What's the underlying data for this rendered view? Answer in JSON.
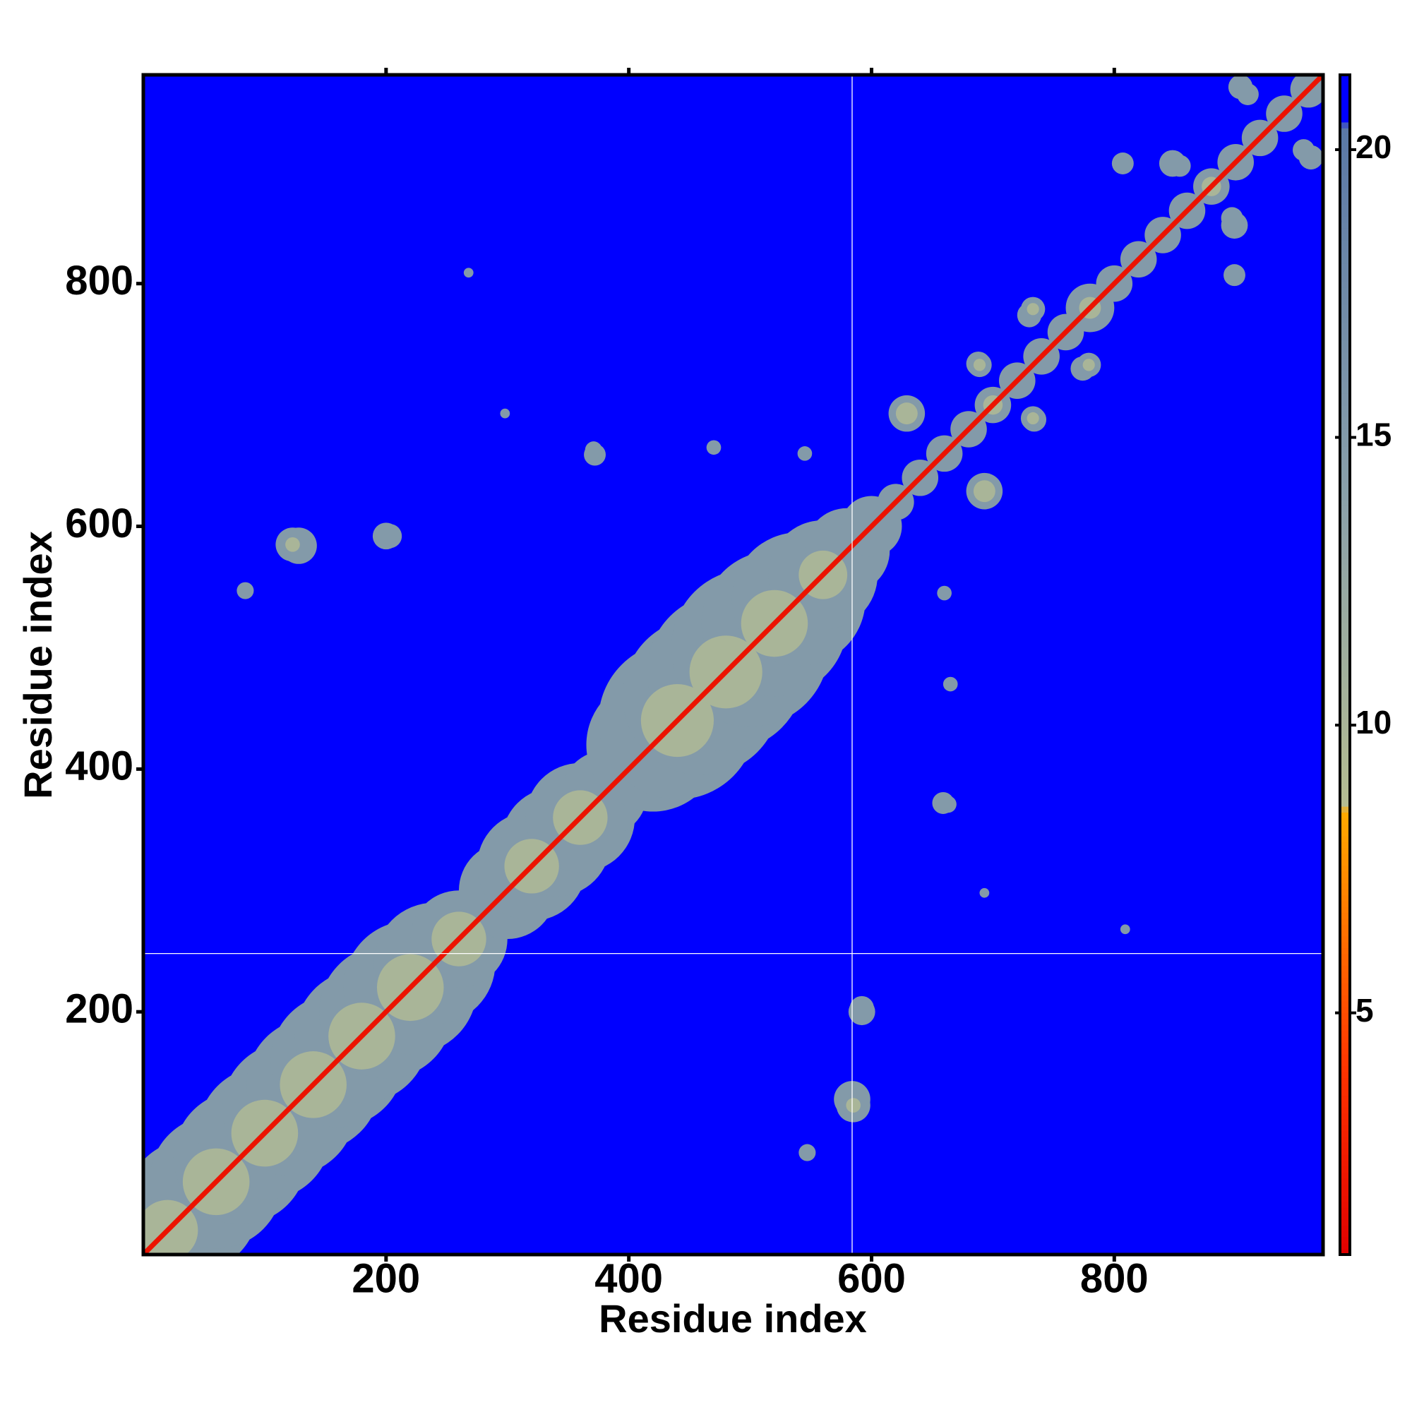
{
  "chart_data": {
    "type": "heatmap",
    "xlabel": "Residue index",
    "ylabel": "Residue index",
    "xlim": [
      0,
      972
    ],
    "ylim": [
      0,
      972
    ],
    "xticks": [
      200,
      400,
      600,
      800
    ],
    "yticks": [
      200,
      400,
      600,
      800
    ],
    "zlim": [
      0.8,
      21.3
    ],
    "zticks": [
      5,
      10,
      15,
      20
    ],
    "colorscale": [
      [
        0.8,
        "#e00000"
      ],
      [
        4,
        "#ff3300"
      ],
      [
        6,
        "#ff6600"
      ],
      [
        8.5,
        "#ffaa00"
      ],
      [
        8.6,
        "#b4bc92"
      ],
      [
        14,
        "#8aa0aa"
      ],
      [
        20.4,
        "#5a78a6"
      ],
      [
        20.5,
        "#0000ff"
      ],
      [
        21.3,
        "#0000ff"
      ]
    ],
    "background_value": 21,
    "diagonal_value": 2,
    "vlines": [
      584
    ],
    "hlines": [
      248
    ],
    "band": [
      {
        "x": 20,
        "span": 110,
        "value": 15
      },
      {
        "x": 40,
        "span": 110,
        "value": 15
      },
      {
        "x": 60,
        "span": 110,
        "value": 15
      },
      {
        "x": 80,
        "span": 110,
        "value": 15
      },
      {
        "x": 100,
        "span": 110,
        "value": 15
      },
      {
        "x": 120,
        "span": 110,
        "value": 15
      },
      {
        "x": 140,
        "span": 110,
        "value": 15
      },
      {
        "x": 160,
        "span": 110,
        "value": 15
      },
      {
        "x": 180,
        "span": 110,
        "value": 15
      },
      {
        "x": 200,
        "span": 110,
        "value": 15
      },
      {
        "x": 220,
        "span": 110,
        "value": 15
      },
      {
        "x": 240,
        "span": 100,
        "value": 15
      },
      {
        "x": 260,
        "span": 80,
        "value": 15
      },
      {
        "x": 280,
        "span": 40,
        "value": 15
      },
      {
        "x": 300,
        "span": 80,
        "value": 15
      },
      {
        "x": 320,
        "span": 90,
        "value": 15
      },
      {
        "x": 340,
        "span": 90,
        "value": 15
      },
      {
        "x": 360,
        "span": 90,
        "value": 15
      },
      {
        "x": 380,
        "span": 70,
        "value": 15
      },
      {
        "x": 400,
        "span": 40,
        "value": 15
      },
      {
        "x": 420,
        "span": 110,
        "value": 15
      },
      {
        "x": 440,
        "span": 130,
        "value": 15
      },
      {
        "x": 460,
        "span": 130,
        "value": 15
      },
      {
        "x": 480,
        "span": 130,
        "value": 15
      },
      {
        "x": 500,
        "span": 130,
        "value": 15
      },
      {
        "x": 520,
        "span": 120,
        "value": 15
      },
      {
        "x": 540,
        "span": 110,
        "value": 15
      },
      {
        "x": 560,
        "span": 90,
        "value": 15
      },
      {
        "x": 580,
        "span": 70,
        "value": 15
      },
      {
        "x": 600,
        "span": 50,
        "value": 15
      },
      {
        "x": 620,
        "span": 30,
        "value": 15
      },
      {
        "x": 640,
        "span": 30,
        "value": 15
      },
      {
        "x": 660,
        "span": 30,
        "value": 15
      },
      {
        "x": 680,
        "span": 30,
        "value": 15
      },
      {
        "x": 700,
        "span": 30,
        "value": 15
      },
      {
        "x": 720,
        "span": 30,
        "value": 15
      },
      {
        "x": 740,
        "span": 30,
        "value": 15
      },
      {
        "x": 760,
        "span": 30,
        "value": 15
      },
      {
        "x": 780,
        "span": 40,
        "value": 15
      },
      {
        "x": 800,
        "span": 30,
        "value": 15
      },
      {
        "x": 820,
        "span": 30,
        "value": 15
      },
      {
        "x": 840,
        "span": 30,
        "value": 15
      },
      {
        "x": 860,
        "span": 30,
        "value": 15
      },
      {
        "x": 880,
        "span": 30,
        "value": 15
      },
      {
        "x": 900,
        "span": 30,
        "value": 15
      },
      {
        "x": 920,
        "span": 30,
        "value": 15
      },
      {
        "x": 940,
        "span": 30,
        "value": 15
      },
      {
        "x": 960,
        "span": 30,
        "value": 15
      },
      {
        "x": 20,
        "span": 50,
        "value": 10
      },
      {
        "x": 60,
        "span": 55,
        "value": 10
      },
      {
        "x": 100,
        "span": 55,
        "value": 10
      },
      {
        "x": 140,
        "span": 55,
        "value": 10
      },
      {
        "x": 180,
        "span": 55,
        "value": 10
      },
      {
        "x": 220,
        "span": 55,
        "value": 10
      },
      {
        "x": 260,
        "span": 45,
        "value": 10
      },
      {
        "x": 320,
        "span": 45,
        "value": 10
      },
      {
        "x": 360,
        "span": 45,
        "value": 10
      },
      {
        "x": 440,
        "span": 60,
        "value": 10
      },
      {
        "x": 480,
        "span": 60,
        "value": 10
      },
      {
        "x": 520,
        "span": 55,
        "value": 10
      },
      {
        "x": 560,
        "span": 40,
        "value": 10
      },
      {
        "x": 700,
        "span": 16,
        "value": 10
      },
      {
        "x": 780,
        "span": 18,
        "value": 10
      },
      {
        "x": 880,
        "span": 16,
        "value": 10
      }
    ],
    "patches": [
      {
        "x": 128,
        "y": 584,
        "span": 30,
        "value": 15
      },
      {
        "x": 200,
        "y": 592,
        "span": 22,
        "value": 15
      },
      {
        "x": 372,
        "y": 659,
        "span": 18,
        "value": 15
      },
      {
        "x": 547,
        "y": 84,
        "span": 14,
        "value": 15
      },
      {
        "x": 585,
        "y": 123,
        "span": 28,
        "value": 15
      },
      {
        "x": 592,
        "y": 203,
        "span": 20,
        "value": 15
      },
      {
        "x": 663,
        "y": 371,
        "span": 14,
        "value": 15
      },
      {
        "x": 665,
        "y": 470,
        "span": 12,
        "value": 15
      },
      {
        "x": 660,
        "y": 545,
        "span": 12,
        "value": 15
      },
      {
        "x": 629,
        "y": 693,
        "span": 30,
        "value": 15
      },
      {
        "x": 689,
        "y": 733,
        "span": 20,
        "value": 15
      },
      {
        "x": 734,
        "y": 688,
        "span": 20,
        "value": 15
      },
      {
        "x": 730,
        "y": 774,
        "span": 20,
        "value": 15
      },
      {
        "x": 779,
        "y": 733,
        "span": 20,
        "value": 15
      },
      {
        "x": 848,
        "y": 899,
        "span": 22,
        "value": 15
      },
      {
        "x": 807,
        "y": 899,
        "span": 18,
        "value": 15
      },
      {
        "x": 904,
        "y": 962,
        "span": 20,
        "value": 15
      },
      {
        "x": 854,
        "y": 897,
        "span": 18,
        "value": 15
      },
      {
        "x": 910,
        "y": 956,
        "span": 18,
        "value": 15
      },
      {
        "x": 268,
        "y": 809,
        "span": 8,
        "value": 15
      },
      {
        "x": 298,
        "y": 693,
        "span": 8,
        "value": 15
      },
      {
        "x": 629,
        "y": 693,
        "span": 18,
        "value": 10
      },
      {
        "x": 689,
        "y": 733,
        "span": 10,
        "value": 10
      },
      {
        "x": 779,
        "y": 733,
        "span": 10,
        "value": 10
      },
      {
        "x": 585,
        "y": 123,
        "span": 12,
        "value": 10
      }
    ]
  }
}
